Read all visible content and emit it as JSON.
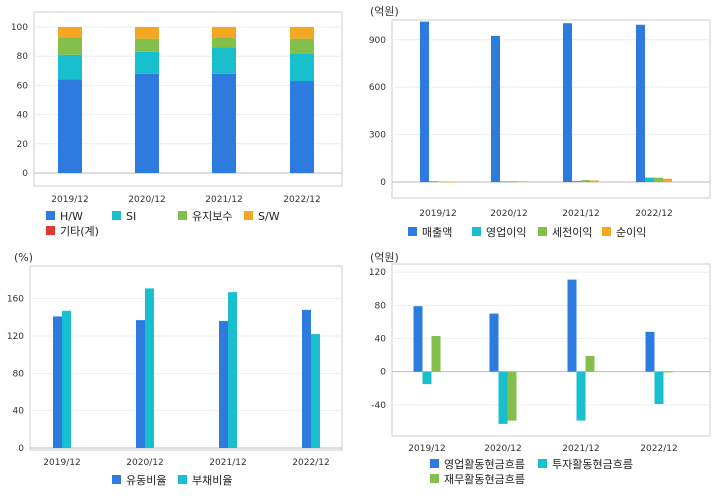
{
  "chart_data": [
    {
      "id": "product_mix",
      "type": "stacked-bar",
      "unit_label": "",
      "categories": [
        "2019/12",
        "2020/12",
        "2021/12",
        "2022/12"
      ],
      "ylim": [
        0,
        100
      ],
      "yticks": [
        0,
        20,
        40,
        60,
        80,
        100
      ],
      "series": [
        {
          "name": "H/W",
          "color": "#2e7be0",
          "values": [
            64,
            68,
            68,
            63
          ]
        },
        {
          "name": "SI",
          "color": "#18bfcc",
          "values": [
            17,
            15,
            18,
            19
          ]
        },
        {
          "name": "유지보수",
          "color": "#84bf4b",
          "values": [
            12,
            9,
            7,
            10
          ]
        },
        {
          "name": "S/W",
          "color": "#f5a623",
          "values": [
            7,
            8,
            7,
            8
          ]
        },
        {
          "name": "기타(계)",
          "color": "#e03a2f",
          "values": [
            0,
            0,
            0,
            0
          ]
        }
      ]
    },
    {
      "id": "income",
      "type": "bar",
      "unit_label": "(억원)",
      "categories": [
        "2019/12",
        "2020/12",
        "2021/12",
        "2022/12"
      ],
      "ylim": [
        0,
        1000
      ],
      "yticks": [
        0,
        300,
        600,
        900
      ],
      "series": [
        {
          "name": "매출액",
          "color": "#2e7be0",
          "values": [
            1015,
            925,
            1005,
            995
          ]
        },
        {
          "name": "영업이익",
          "color": "#18bfcc",
          "values": [
            5,
            4,
            7,
            28
          ]
        },
        {
          "name": "세전이익",
          "color": "#84bf4b",
          "values": [
            3,
            5,
            12,
            27
          ]
        },
        {
          "name": "순이익",
          "color": "#f5a623",
          "values": [
            2,
            4,
            10,
            21
          ]
        }
      ]
    },
    {
      "id": "ratios",
      "type": "bar",
      "unit_label": "(%)",
      "categories": [
        "2019/12",
        "2020/12",
        "2021/12",
        "2022/12"
      ],
      "ylim": [
        0,
        180
      ],
      "yticks": [
        0,
        40,
        80,
        120,
        160
      ],
      "series": [
        {
          "name": "유동비율",
          "color": "#2e7be0",
          "values": [
            141,
            137,
            136,
            148
          ]
        },
        {
          "name": "부채비율",
          "color": "#18bfcc",
          "values": [
            147,
            171,
            167,
            122
          ]
        }
      ]
    },
    {
      "id": "cashflow",
      "type": "bar",
      "unit_label": "(억원)",
      "categories": [
        "2019/12",
        "2020/12",
        "2021/12",
        "2022/12"
      ],
      "ylim": [
        -80,
        125
      ],
      "yticks": [
        -40,
        0,
        40,
        80,
        120
      ],
      "series": [
        {
          "name": "영업활동현금흐름",
          "color": "#2e7be0",
          "values": [
            79,
            70,
            111,
            48
          ]
        },
        {
          "name": "투자활동현금흐름",
          "color": "#18bfcc",
          "values": [
            -15,
            -63,
            -59,
            -39
          ]
        },
        {
          "name": "재무활동현금흐름",
          "color": "#84bf4b",
          "values": [
            43,
            -59,
            19,
            -1
          ]
        }
      ]
    }
  ]
}
